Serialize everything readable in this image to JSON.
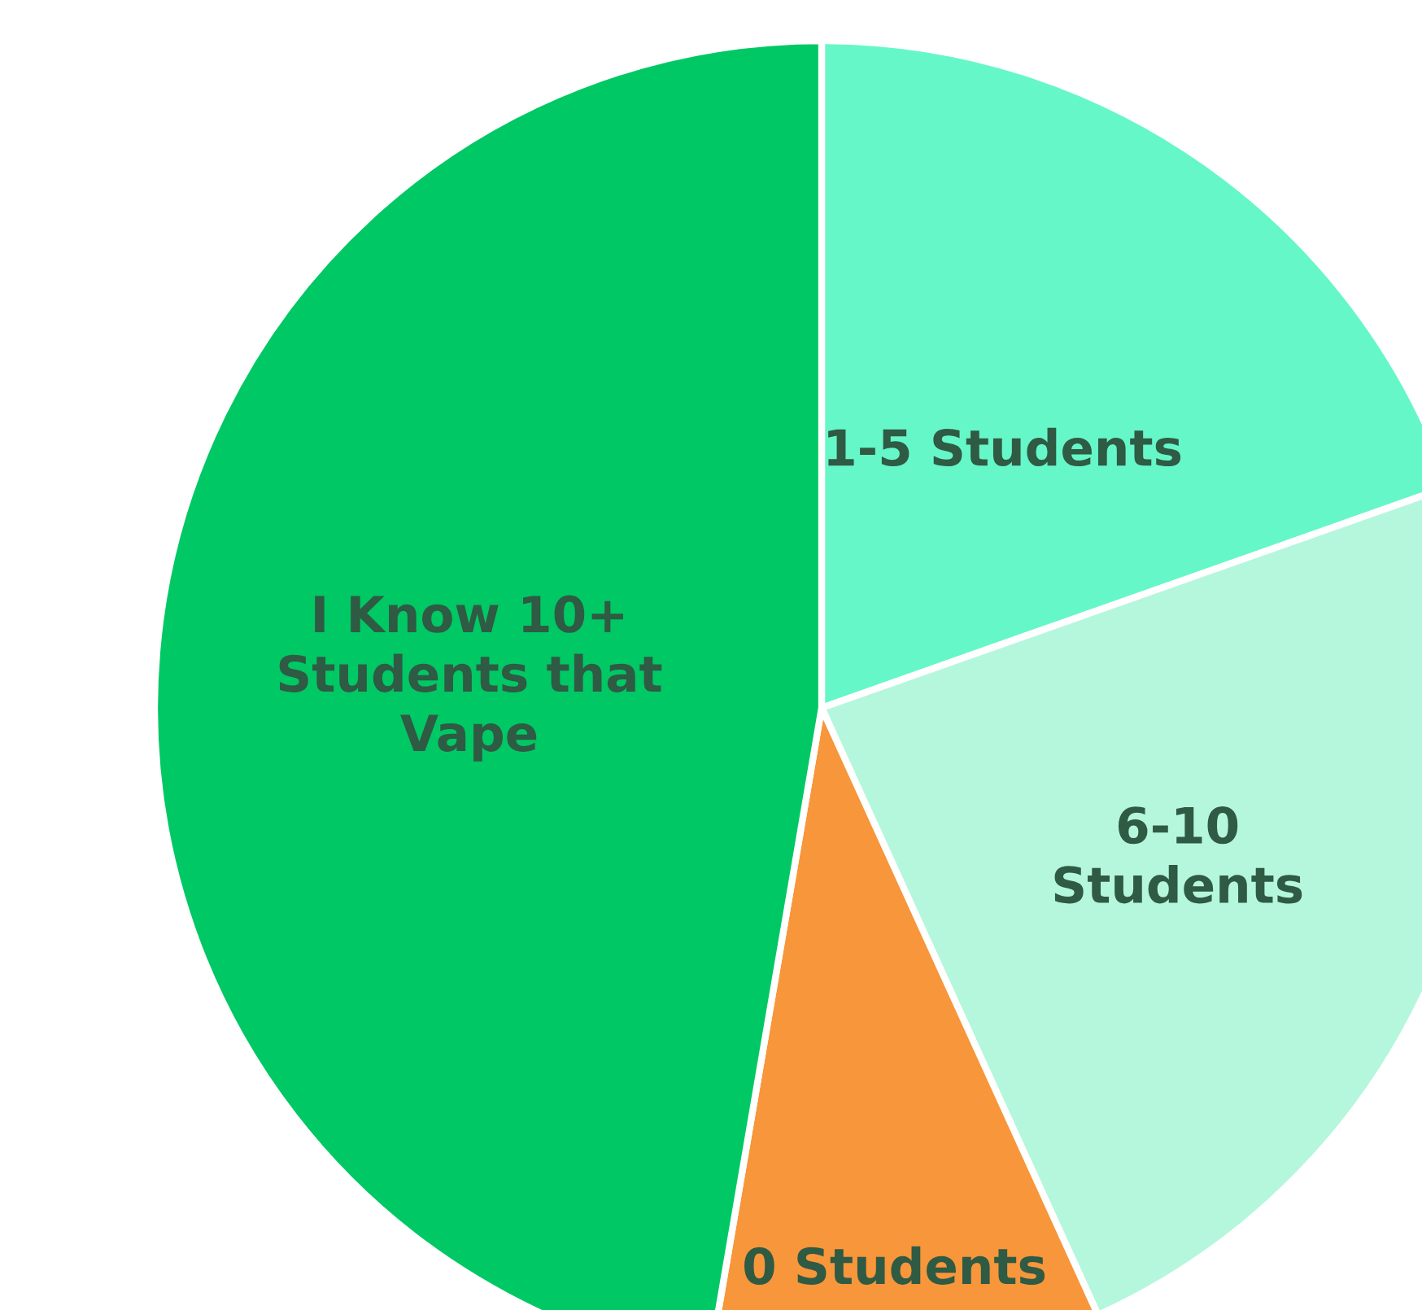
{
  "chart_data": {
    "type": "pie",
    "categories": [
      "1-5 Students",
      "6-10\nStudents",
      "0 Students",
      "I Know 10+\nStudents that\nVape"
    ],
    "values": [
      19.6,
      23.6,
      9.5,
      47.3
    ],
    "colors": [
      "#66f7c9",
      "#b5f7dc",
      "#f7963a",
      "#00c864"
    ],
    "legend": false
  }
}
